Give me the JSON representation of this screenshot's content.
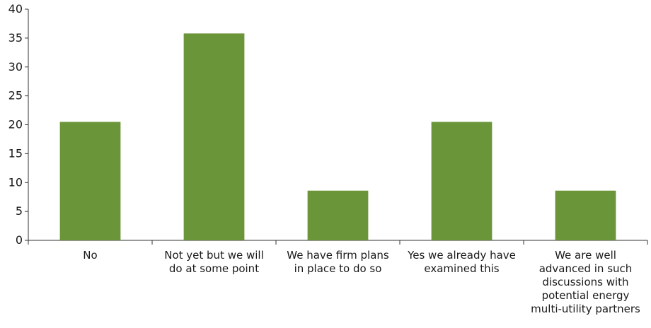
{
  "chart_data": {
    "type": "bar",
    "title": "",
    "xlabel": "",
    "ylabel": "",
    "categories": [
      [
        "No"
      ],
      [
        "Not yet but we will",
        "do at some point"
      ],
      [
        "We have firm plans",
        "in place to do so"
      ],
      [
        "Yes we already have",
        "examined this"
      ],
      [
        "We are well",
        "advanced in such",
        "discussions with",
        "potential energy",
        "multi-utility partners"
      ]
    ],
    "values": [
      20.5,
      35.8,
      8.6,
      20.5,
      8.6
    ],
    "ylim": [
      0,
      40
    ],
    "yticks": [
      0,
      5,
      10,
      15,
      20,
      25,
      30,
      35,
      40
    ],
    "grid": false,
    "legend": "none",
    "bar_color": "#6a9539"
  }
}
